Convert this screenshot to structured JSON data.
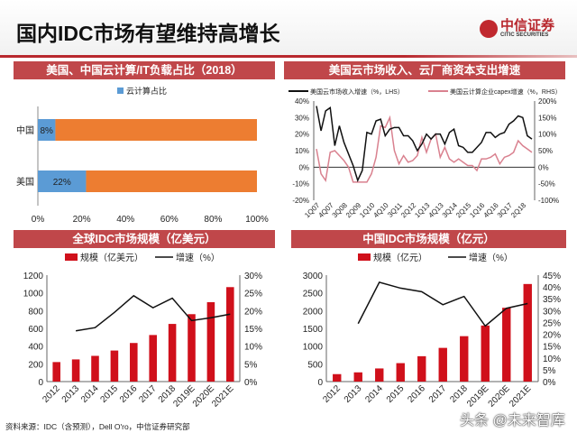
{
  "header": {
    "title": "国内IDC市场有望维持高增长",
    "logo_cn": "中信证券",
    "logo_en": "CITIC SECURITIES"
  },
  "colors": {
    "accent": "#c0282e",
    "header_bg": "#c0474a",
    "blue": "#5b9bd5",
    "orange": "#ed7d31",
    "pink": "#d9818f",
    "bar_red": "#d0101b"
  },
  "footer": {
    "source": "资料来源：IDC（含预测），Dell O'ro，中信证券研究部",
    "watermark": "头条 @未来智库"
  },
  "chart_data": [
    {
      "type": "bar",
      "orientation": "horizontal",
      "title": "美国、中国云计算/IT负载占比（2018）",
      "categories": [
        "中国",
        "美国"
      ],
      "series": [
        {
          "name": "云计算占比",
          "values": [
            8,
            22
          ],
          "labels": [
            "8%",
            "22%"
          ]
        }
      ],
      "remainder_total": 100,
      "xlim": [
        0,
        100
      ],
      "xticks": [
        "0%",
        "20%",
        "40%",
        "60%",
        "80%",
        "100%"
      ],
      "legend": "top"
    },
    {
      "type": "line",
      "title": "美国云市场收入、云厂商资本支出增速",
      "series": [
        {
          "name": "美国云市场收入增速（%，LHS）",
          "axis": "left",
          "values": [
            37,
            22,
            34,
            36,
            13,
            25,
            15,
            8,
            1,
            -8,
            -2,
            21,
            20,
            28,
            29,
            19,
            23,
            24,
            24,
            19,
            19,
            16,
            10,
            14,
            20,
            17,
            20,
            20,
            14,
            21,
            23,
            13,
            12,
            9,
            9,
            12,
            15,
            21,
            21,
            18,
            20,
            21,
            26,
            28,
            31,
            30,
            19,
            17
          ]
        },
        {
          "name": "美国云计算企业capex增速（%，RHS）",
          "axis": "right",
          "values": [
            55,
            -20,
            -40,
            45,
            50,
            35,
            20,
            0,
            -45,
            -45,
            -45,
            -45,
            -20,
            30,
            125,
            120,
            150,
            50,
            10,
            35,
            15,
            20,
            35,
            90,
            45,
            85,
            100,
            30,
            60,
            25,
            15,
            25,
            15,
            5,
            5,
            -10,
            25,
            25,
            30,
            40,
            10,
            30,
            35,
            45,
            80,
            65,
            55,
            45
          ]
        }
      ],
      "xticks": [
        "1Q07",
        "4Q07",
        "3Q08",
        "2Q09",
        "1Q10",
        "4Q10",
        "3Q11",
        "2Q12",
        "1Q13",
        "4Q13",
        "3Q14",
        "2Q15",
        "1Q16",
        "4Q16",
        "3Q17",
        "2Q18"
      ],
      "ylim_left": [
        -20,
        40
      ],
      "yticks_left": [
        "-20%",
        "-10%",
        "0%",
        "10%",
        "20%",
        "30%",
        "40%"
      ],
      "ylim_right": [
        -100,
        200
      ],
      "yticks_right": [
        "-100%",
        "-50%",
        "0%",
        "50%",
        "100%",
        "150%",
        "200%"
      ],
      "legend": "top"
    },
    {
      "type": "bar",
      "title": "全球IDC市场规模（亿美元）",
      "categories": [
        "2012",
        "2013",
        "2014",
        "2015",
        "2016",
        "2017",
        "2018",
        "2019E",
        "2020E",
        "2021E"
      ],
      "series": [
        {
          "name": "规模（亿美元）",
          "type": "bar",
          "axis": "left",
          "values": [
            220,
            250,
            290,
            350,
            435,
            525,
            650,
            760,
            895,
            1065
          ]
        },
        {
          "name": "增速（%）",
          "type": "line",
          "axis": "right",
          "values": [
            null,
            14.3,
            15.2,
            19.5,
            24.2,
            20.8,
            23.5,
            17.2,
            18,
            19
          ]
        }
      ],
      "ylim_left": [
        0,
        1200
      ],
      "yticks_left": [
        "0",
        "200",
        "400",
        "600",
        "800",
        "1000",
        "1200"
      ],
      "ylim_right": [
        0,
        30
      ],
      "yticks_right": [
        "0%",
        "5%",
        "10%",
        "15%",
        "20%",
        "25%",
        "30%"
      ],
      "legend": "top"
    },
    {
      "type": "bar",
      "title": "中国IDC市场规模（亿元）",
      "categories": [
        "2012",
        "2013",
        "2014",
        "2015",
        "2016",
        "2017",
        "2018",
        "2019E",
        "2020E",
        "2021E"
      ],
      "series": [
        {
          "name": "规模（亿元）",
          "type": "bar",
          "axis": "left",
          "values": [
            210,
            260,
            370,
            520,
            715,
            950,
            1280,
            1580,
            2080,
            2750
          ]
        },
        {
          "name": "增速（%）",
          "type": "line",
          "axis": "right",
          "values": [
            null,
            24.5,
            42,
            39.5,
            38,
            32.5,
            36,
            23.5,
            31,
            33
          ]
        }
      ],
      "ylim_left": [
        0,
        3000
      ],
      "yticks_left": [
        "0",
        "500",
        "1000",
        "1500",
        "2000",
        "2500",
        "3000"
      ],
      "ylim_right": [
        0,
        45
      ],
      "yticks_right": [
        "0%",
        "5%",
        "10%",
        "15%",
        "20%",
        "25%",
        "30%",
        "35%",
        "40%",
        "45%"
      ],
      "legend": "top"
    }
  ]
}
